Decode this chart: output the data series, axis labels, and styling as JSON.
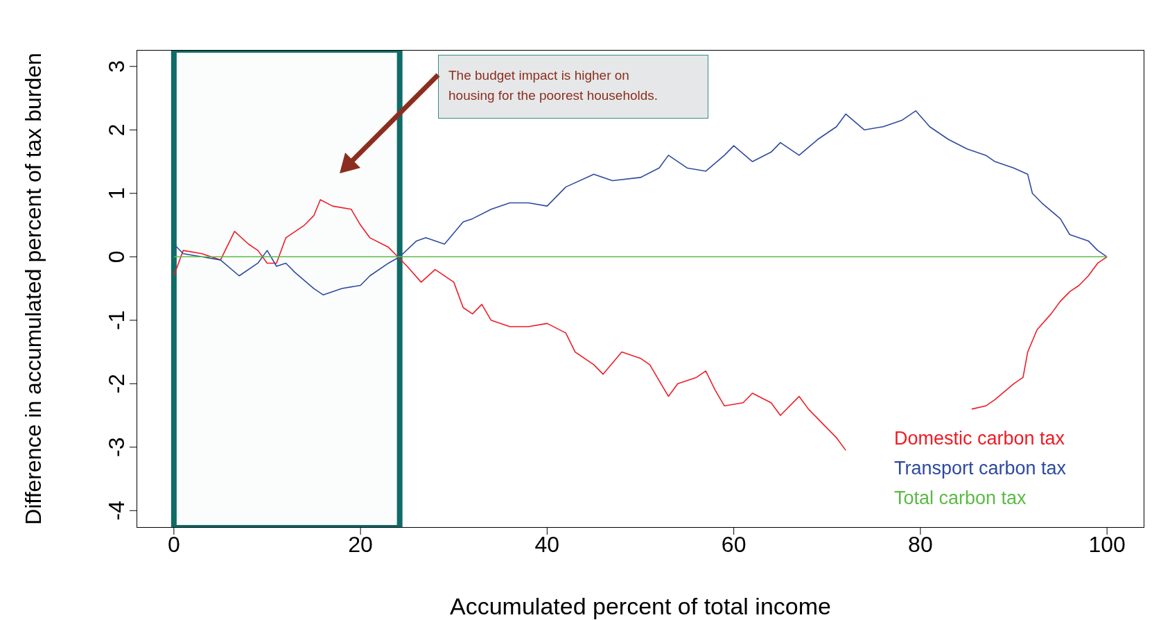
{
  "chart_data": {
    "type": "line",
    "xlabel": "Accumulated percent of total income",
    "ylabel": "Difference in accumulated percent of tax burden",
    "xlim": [
      -4,
      104
    ],
    "ylim": [
      -4.27,
      3.26
    ],
    "xticks": [
      0,
      20,
      40,
      60,
      80,
      100
    ],
    "yticks": [
      -4,
      -3,
      -2,
      -1,
      0,
      1,
      2,
      3
    ],
    "legend": "bottom right",
    "marker": "none",
    "line_style": "solid",
    "annotations": [
      "The budget impact is higher on housing for the poorest households."
    ],
    "bands": [
      {
        "axis": "x",
        "from": 0,
        "to": 24.2,
        "color": "#0f6b67"
      }
    ],
    "series": [
      {
        "name": "Domestic carbon tax",
        "color": "#ee1c25",
        "x": [
          0,
          1,
          3,
          5,
          6.5,
          8,
          9,
          10,
          11,
          12,
          14,
          15,
          15.7,
          17,
          19,
          20,
          21,
          23,
          24,
          25,
          26.5,
          28,
          30,
          31,
          32,
          33,
          34,
          36,
          38,
          40,
          42,
          43,
          45,
          46,
          48,
          50,
          51,
          53,
          54,
          56,
          57,
          58,
          59,
          61,
          62,
          64,
          65,
          67,
          68,
          70,
          71,
          72,
          79,
          85.5,
          87,
          88,
          90,
          91,
          91.5,
          92.5,
          94,
          95,
          96,
          97,
          98,
          99,
          100
        ],
        "values": [
          -0.3,
          0.1,
          0.05,
          -0.05,
          0.4,
          0.2,
          0.1,
          -0.1,
          -0.1,
          0.3,
          0.5,
          0.65,
          0.9,
          0.8,
          0.75,
          0.5,
          0.3,
          0.15,
          0,
          -0.15,
          -0.4,
          -0.2,
          -0.4,
          -0.8,
          -0.9,
          -0.75,
          -1,
          -1.1,
          -1.1,
          -1.05,
          -1.2,
          -1.5,
          -1.7,
          -1.85,
          -1.5,
          -1.6,
          -1.7,
          -2.2,
          -2,
          -1.9,
          -1.8,
          -2.1,
          -2.35,
          -2.3,
          -2.15,
          -2.3,
          -2.5,
          -2.2,
          -2.4,
          -2.7,
          -2.85,
          -3.05,
          null,
          -2.4,
          -2.35,
          -2.25,
          -2,
          -1.9,
          -1.5,
          -1.15,
          -0.9,
          -0.7,
          -0.55,
          -0.45,
          -0.3,
          -0.1,
          0
        ]
      },
      {
        "name": "Transport carbon tax",
        "color": "#2e4a9e",
        "x": [
          0,
          1,
          3,
          5,
          7,
          9,
          10,
          11,
          12,
          13,
          15,
          16,
          18,
          20,
          21,
          23,
          24.2,
          26,
          27,
          29,
          31,
          32,
          34,
          36,
          38,
          40,
          42,
          45,
          47,
          50,
          52,
          53,
          55,
          57,
          59,
          60,
          62,
          64,
          65,
          67,
          69,
          71,
          72,
          74,
          76,
          78,
          79.5,
          81,
          83,
          85,
          87,
          88,
          90,
          91.5,
          92,
          93,
          95,
          96,
          98,
          99,
          100
        ],
        "values": [
          0.2,
          0.05,
          0,
          -0.05,
          -0.3,
          -0.1,
          0.1,
          -0.15,
          -0.1,
          -0.25,
          -0.5,
          -0.6,
          -0.5,
          -0.45,
          -0.3,
          -0.1,
          0,
          0.25,
          0.3,
          0.2,
          0.55,
          0.6,
          0.75,
          0.85,
          0.85,
          0.8,
          1.1,
          1.3,
          1.2,
          1.25,
          1.4,
          1.6,
          1.4,
          1.35,
          1.6,
          1.75,
          1.5,
          1.65,
          1.8,
          1.6,
          1.85,
          2.05,
          2.25,
          2,
          2.05,
          2.15,
          2.3,
          2.05,
          1.85,
          1.7,
          1.6,
          1.5,
          1.4,
          1.3,
          1,
          0.85,
          0.6,
          0.35,
          0.25,
          0.1,
          0
        ]
      },
      {
        "name": "Total carbon tax",
        "color": "#5bbb46",
        "x": [
          0,
          100
        ],
        "values": [
          0,
          0
        ]
      }
    ]
  }
}
